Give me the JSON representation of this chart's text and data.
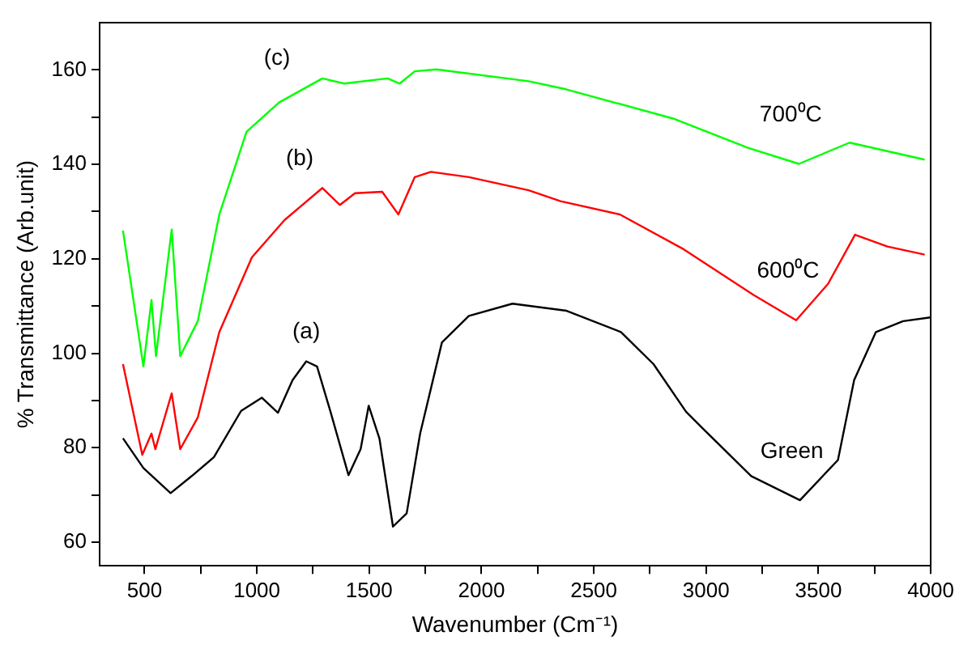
{
  "chart_data": {
    "type": "line",
    "xlabel": "Wavenumber (Cm⁻¹)",
    "ylabel": "% Transmittance (Arb.unit)",
    "xlim": [
      300,
      4000
    ],
    "ylim": [
      55,
      170
    ],
    "xticks": [
      500,
      {
        "value": 750,
        "label": null
      },
      1000,
      {
        "value": 1250,
        "label": null
      },
      1500,
      {
        "value": 1750,
        "label": null
      },
      2000,
      {
        "value": 2250,
        "label": null
      },
      2500,
      {
        "value": 2750,
        "label": null
      },
      3000,
      {
        "value": 3250,
        "label": null
      },
      3500,
      {
        "value": 3750,
        "label": null
      },
      4000
    ],
    "yticks": [
      60,
      {
        "value": 70,
        "label": null
      },
      80,
      {
        "value": 90,
        "label": null
      },
      100,
      {
        "value": 110,
        "label": null
      },
      120,
      {
        "value": 130,
        "label": null
      },
      140,
      {
        "value": 150,
        "label": null
      },
      160
    ],
    "marker": "none",
    "legend": false,
    "series": [
      {
        "name": "Green",
        "color": "#000000",
        "x": [
          404,
          495,
          616,
          710,
          809,
          930,
          1022,
          1094,
          1159,
          1220,
          1268,
          1328,
          1408,
          1462,
          1498,
          1546,
          1606,
          1667,
          1727,
          1824,
          1944,
          2138,
          2379,
          2621,
          2766,
          2911,
          2983,
          3201,
          3418,
          3587,
          3659,
          3756,
          3877,
          3998
        ],
        "values": [
          82,
          75.7,
          70.4,
          74,
          78,
          87.8,
          90.6,
          87.4,
          94.3,
          98.3,
          97.2,
          87.6,
          74.2,
          79.7,
          88.9,
          81.9,
          63.3,
          66.1,
          83,
          102.3,
          107.9,
          110.5,
          109,
          104.5,
          97.7,
          87.6,
          84.2,
          74,
          68.9,
          77.4,
          94.3,
          104.5,
          106.8,
          107.6
        ]
      },
      {
        "name": "600⁰C",
        "color": "#ff0000",
        "x": [
          404,
          490,
          531,
          548,
          621,
          659,
          737,
          833,
          978,
          1123,
          1292,
          1370,
          1437,
          1558,
          1630,
          1703,
          1775,
          1944,
          2210,
          2352,
          2616,
          2901,
          3210,
          3401,
          3543,
          3663,
          3807,
          3973
        ],
        "values": [
          97.7,
          78.5,
          83,
          79.7,
          91.5,
          79.7,
          86.4,
          104.5,
          120.3,
          128.2,
          135,
          131.4,
          133.9,
          134.2,
          129.4,
          137.3,
          138.4,
          137.3,
          134.5,
          132.2,
          129.4,
          122,
          112.4,
          107,
          114.7,
          125.1,
          122.6,
          120.9
        ]
      },
      {
        "name": "700⁰C",
        "color": "#00ff00",
        "x": [
          404,
          495,
          531,
          551,
          621,
          659,
          737,
          833,
          954,
          1099,
          1292,
          1389,
          1582,
          1636,
          1703,
          1799,
          2210,
          2376,
          2853,
          3186,
          3413,
          3639,
          3973
        ],
        "values": [
          126,
          97.2,
          111.3,
          99.4,
          126.2,
          99.4,
          106.8,
          129.4,
          146.9,
          153.1,
          158.2,
          157.1,
          158.2,
          157.1,
          159.7,
          160.1,
          157.6,
          155.9,
          149.7,
          143.5,
          140.1,
          144.6,
          141
        ]
      }
    ],
    "annotations": [
      "(a)",
      "(b)",
      "(c)"
    ]
  }
}
